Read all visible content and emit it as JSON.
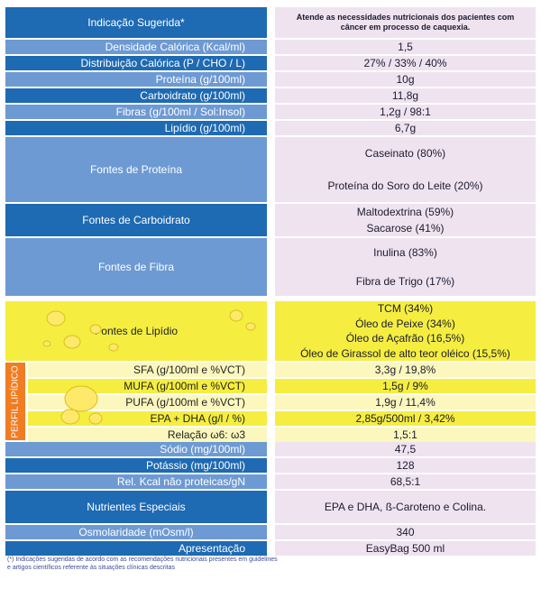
{
  "rows": {
    "indicacao": {
      "label": "Indicação Sugerida*",
      "value": "Atende as necessidades nutricionais dos pacientes com câncer em processo de caquexia."
    },
    "densidade": {
      "label": "Densidade Calórica (Kcal/ml)",
      "value": "1,5"
    },
    "distribuicao": {
      "label": "Distribuição Calórica (P / CHO / L)",
      "value": "27% / 33% / 40%"
    },
    "proteina": {
      "label": "Proteína  (g/100ml)",
      "value": "10g"
    },
    "carboidrato": {
      "label": "Carboidrato  (g/100ml)",
      "value": "11,8g"
    },
    "fibras": {
      "label": "Fibras (g/100ml / Sol:Insol)",
      "value": "1,2g / 98:1"
    },
    "lipidio": {
      "label": "Lipídio  (g/100ml)",
      "value": "6,7g"
    },
    "fontes_proteina": {
      "label": "Fontes de Proteína",
      "values": [
        "Caseinato (80%)",
        "Proteína do Soro do Leite (20%)"
      ]
    },
    "fontes_carboidrato": {
      "label": "Fontes de Carboidrato",
      "values": [
        "Maltodextrina (59%)",
        "Sacarose (41%)"
      ]
    },
    "fontes_fibra": {
      "label": "Fontes de Fibra",
      "values": [
        "Inulina (83%)",
        "Fibra de Trigo (17%)"
      ]
    },
    "fontes_lipidio": {
      "label": "Fontes de Lipídio",
      "values": [
        "TCM (34%)",
        "Óleo de Peixe (34%)",
        "Óleo de Açafrão (16,5%)",
        "Óleo de Girassol de alto teor oléico (15,5%)"
      ]
    },
    "perfil_label": "PERFIL LIPÍDICO",
    "sfa": {
      "label": "SFA (g/100ml e %VCT)",
      "value": "3,3g / 19,8%"
    },
    "mufa": {
      "label": "MUFA (g/100ml e %VCT)",
      "value": "1,5g / 9%"
    },
    "pufa": {
      "label": "PUFA (g/100ml e %VCT)",
      "value": "1,9g / 11,4%"
    },
    "epa": {
      "label": "EPA + DHA (g/l / %)",
      "value": "2,85g/500ml / 3,42%"
    },
    "relacao": {
      "label": "Relação    ω6: ω3",
      "value": "1,5:1"
    },
    "sodio": {
      "label": "Sódio (mg/100ml)",
      "value": "47,5"
    },
    "potassio": {
      "label": "Potássio (mg/100ml)",
      "value": "128"
    },
    "relkcal": {
      "label": "Rel. Kcal não proteicas/gN",
      "value": "68,5:1"
    },
    "nutrientes": {
      "label": "Nutrientes Especiais",
      "value": "EPA e DHA,   ß-Caroteno e Colina."
    },
    "osmolaridade": {
      "label": "Osmolaridade (mOsm/l)",
      "value": "340"
    },
    "apresentacao": {
      "label": "Apresentação",
      "value": "EasyBag 500 ml"
    }
  },
  "footnote": "(*) Indicações sugeridas de acordo com as recomendações nutricionais presentes em guidelines e artigos científicos referente às situações clínicas descritas",
  "colors": {
    "blue": "#1e6ab3",
    "light_blue": "#6d9ad3",
    "pink": "#efe3f0",
    "yellow": "#f5ee40",
    "light_yellow": "#fbf7bd",
    "orange": "#f07d22"
  }
}
